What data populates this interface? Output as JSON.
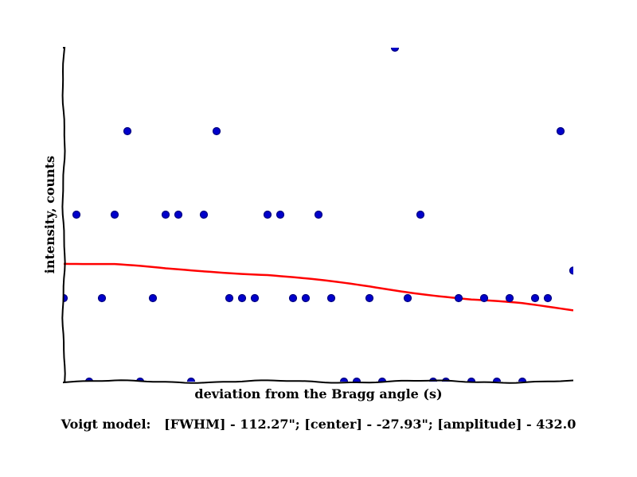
{
  "chart_data": {
    "type": "scatter",
    "title": "",
    "xlabel": "deviation from the Bragg angle (s)",
    "ylabel": "intensity, counts",
    "xlim": [
      0,
      40
    ],
    "ylim": [
      0,
      4.0
    ],
    "grid": false,
    "x_ticks_visible": false,
    "y_ticks_visible": false,
    "series": [
      {
        "kind": "points",
        "color": "#0000cc",
        "marker_edge_color": "#000080",
        "x": [
          0,
          1,
          2,
          3,
          4,
          5,
          6,
          7,
          8,
          9,
          10,
          11,
          12,
          13,
          14,
          15,
          16,
          17,
          18,
          19,
          20,
          21,
          22,
          23,
          24,
          25,
          26,
          27,
          28,
          29,
          30,
          31,
          32,
          33,
          34,
          35,
          36,
          37,
          38,
          39,
          40
        ],
        "y": [
          1,
          2,
          0,
          1,
          2,
          3,
          0,
          1,
          2,
          2,
          0,
          2,
          3,
          1,
          1,
          1,
          2,
          2,
          1,
          1,
          2,
          1,
          0,
          0,
          1,
          0,
          4,
          1,
          2,
          0,
          0,
          1,
          0,
          1,
          0,
          1,
          0,
          1,
          1,
          3,
          1.33
        ]
      },
      {
        "kind": "fit-line",
        "color": "#ff0000",
        "x": [
          0,
          4,
          8,
          12,
          16,
          20,
          24,
          28,
          32,
          36,
          40
        ],
        "y": [
          1.42,
          1.4,
          1.35,
          1.32,
          1.28,
          1.21,
          1.14,
          1.06,
          0.98,
          0.93,
          0.86
        ]
      }
    ],
    "caption": "Voigt model:   [FWHM] - 112.27\"; [center] - -27.93\"; [amplitude] - 432.0"
  }
}
